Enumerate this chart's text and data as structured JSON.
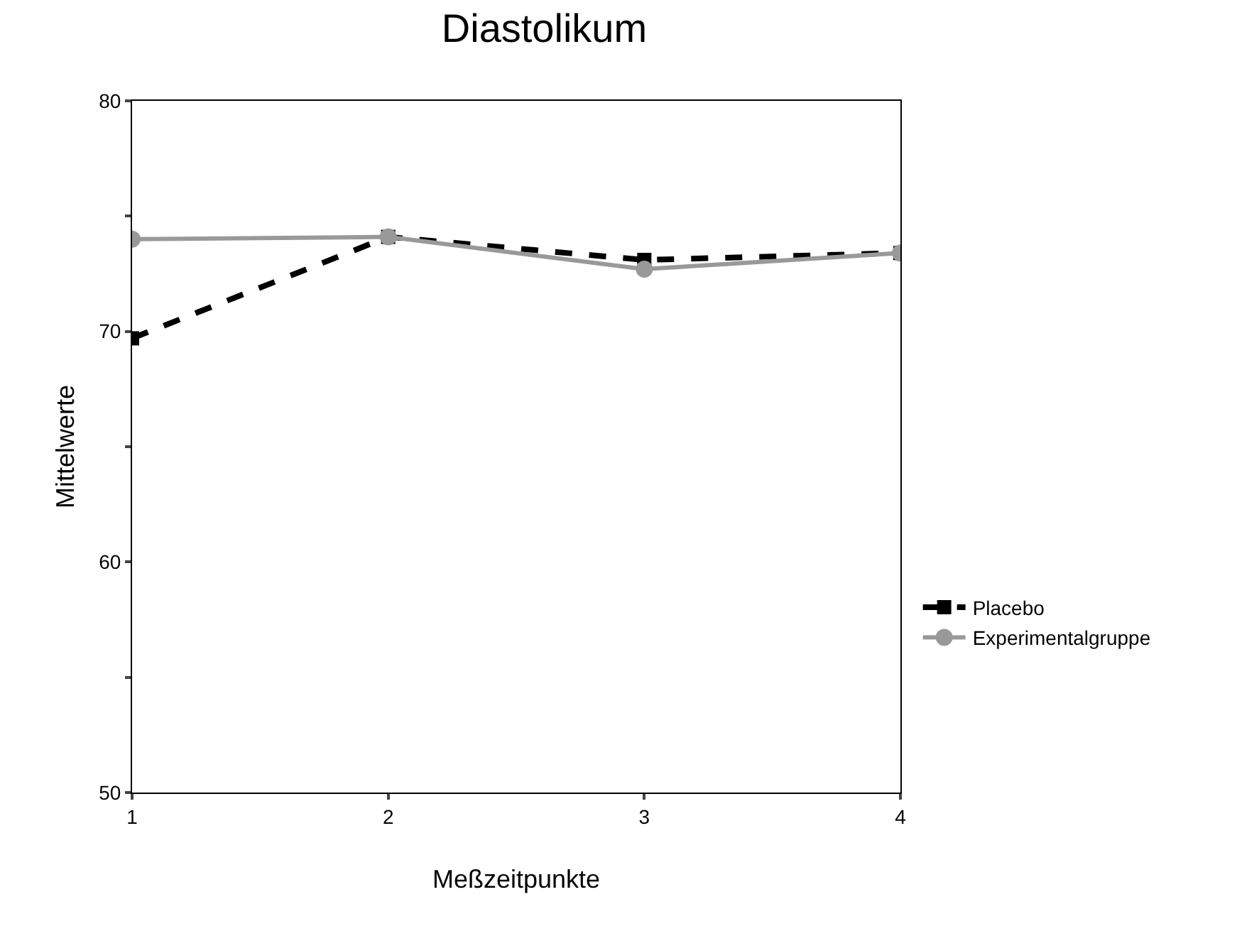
{
  "chart_data": {
    "type": "line",
    "title": "Diastolikum",
    "xlabel": "Meßzeitpunkte",
    "ylabel": "Mittelwerte",
    "x": [
      1,
      2,
      3,
      4
    ],
    "series": [
      {
        "name": "Placebo",
        "color": "#000000",
        "values": [
          69.7,
          74.1,
          73.1,
          73.4
        ],
        "line_style": "dashed",
        "marker": "square"
      },
      {
        "name": "Experimentalgruppe",
        "color": "#999999",
        "values": [
          74.0,
          74.1,
          72.7,
          73.4
        ],
        "line_style": "solid",
        "marker": "circle"
      }
    ],
    "xlim": [
      1,
      4
    ],
    "xticks": [
      1,
      2,
      3,
      4
    ],
    "ylim": [
      50,
      80
    ],
    "yticks": [
      50,
      {
        "value": 55,
        "label": null
      },
      60,
      {
        "value": 65,
        "label": null
      },
      70,
      {
        "value": 75,
        "label": null
      },
      80
    ],
    "grid": false,
    "legend": "right"
  }
}
